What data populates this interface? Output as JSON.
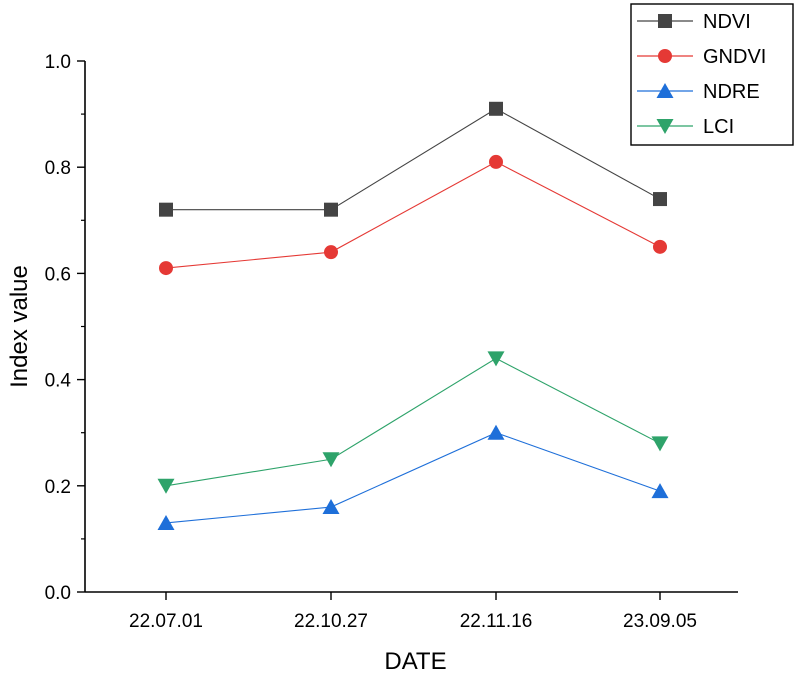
{
  "chart_data": {
    "type": "line",
    "title": "",
    "xlabel": "DATE",
    "ylabel": "Index value",
    "categories": [
      "22.07.01",
      "22.10.27",
      "22.11.16",
      "23.09.05"
    ],
    "ylim": [
      0.0,
      1.0
    ],
    "yticks": [
      "0.0",
      "0.2",
      "0.4",
      "0.6",
      "0.8",
      "1.0"
    ],
    "grid": false,
    "legend_position": "top-right",
    "series": [
      {
        "name": "NDVI",
        "color": "#444444",
        "marker": "square",
        "values": [
          0.72,
          0.72,
          0.91,
          0.74
        ]
      },
      {
        "name": "GNDVI",
        "color": "#e53935",
        "marker": "circle",
        "values": [
          0.61,
          0.64,
          0.81,
          0.65
        ]
      },
      {
        "name": "NDRE",
        "color": "#1e6fd9",
        "marker": "triangle-up",
        "values": [
          0.13,
          0.16,
          0.3,
          0.19
        ]
      },
      {
        "name": "LCI",
        "color": "#2ea36a",
        "marker": "triangle-down",
        "values": [
          0.2,
          0.25,
          0.44,
          0.28
        ]
      }
    ]
  }
}
